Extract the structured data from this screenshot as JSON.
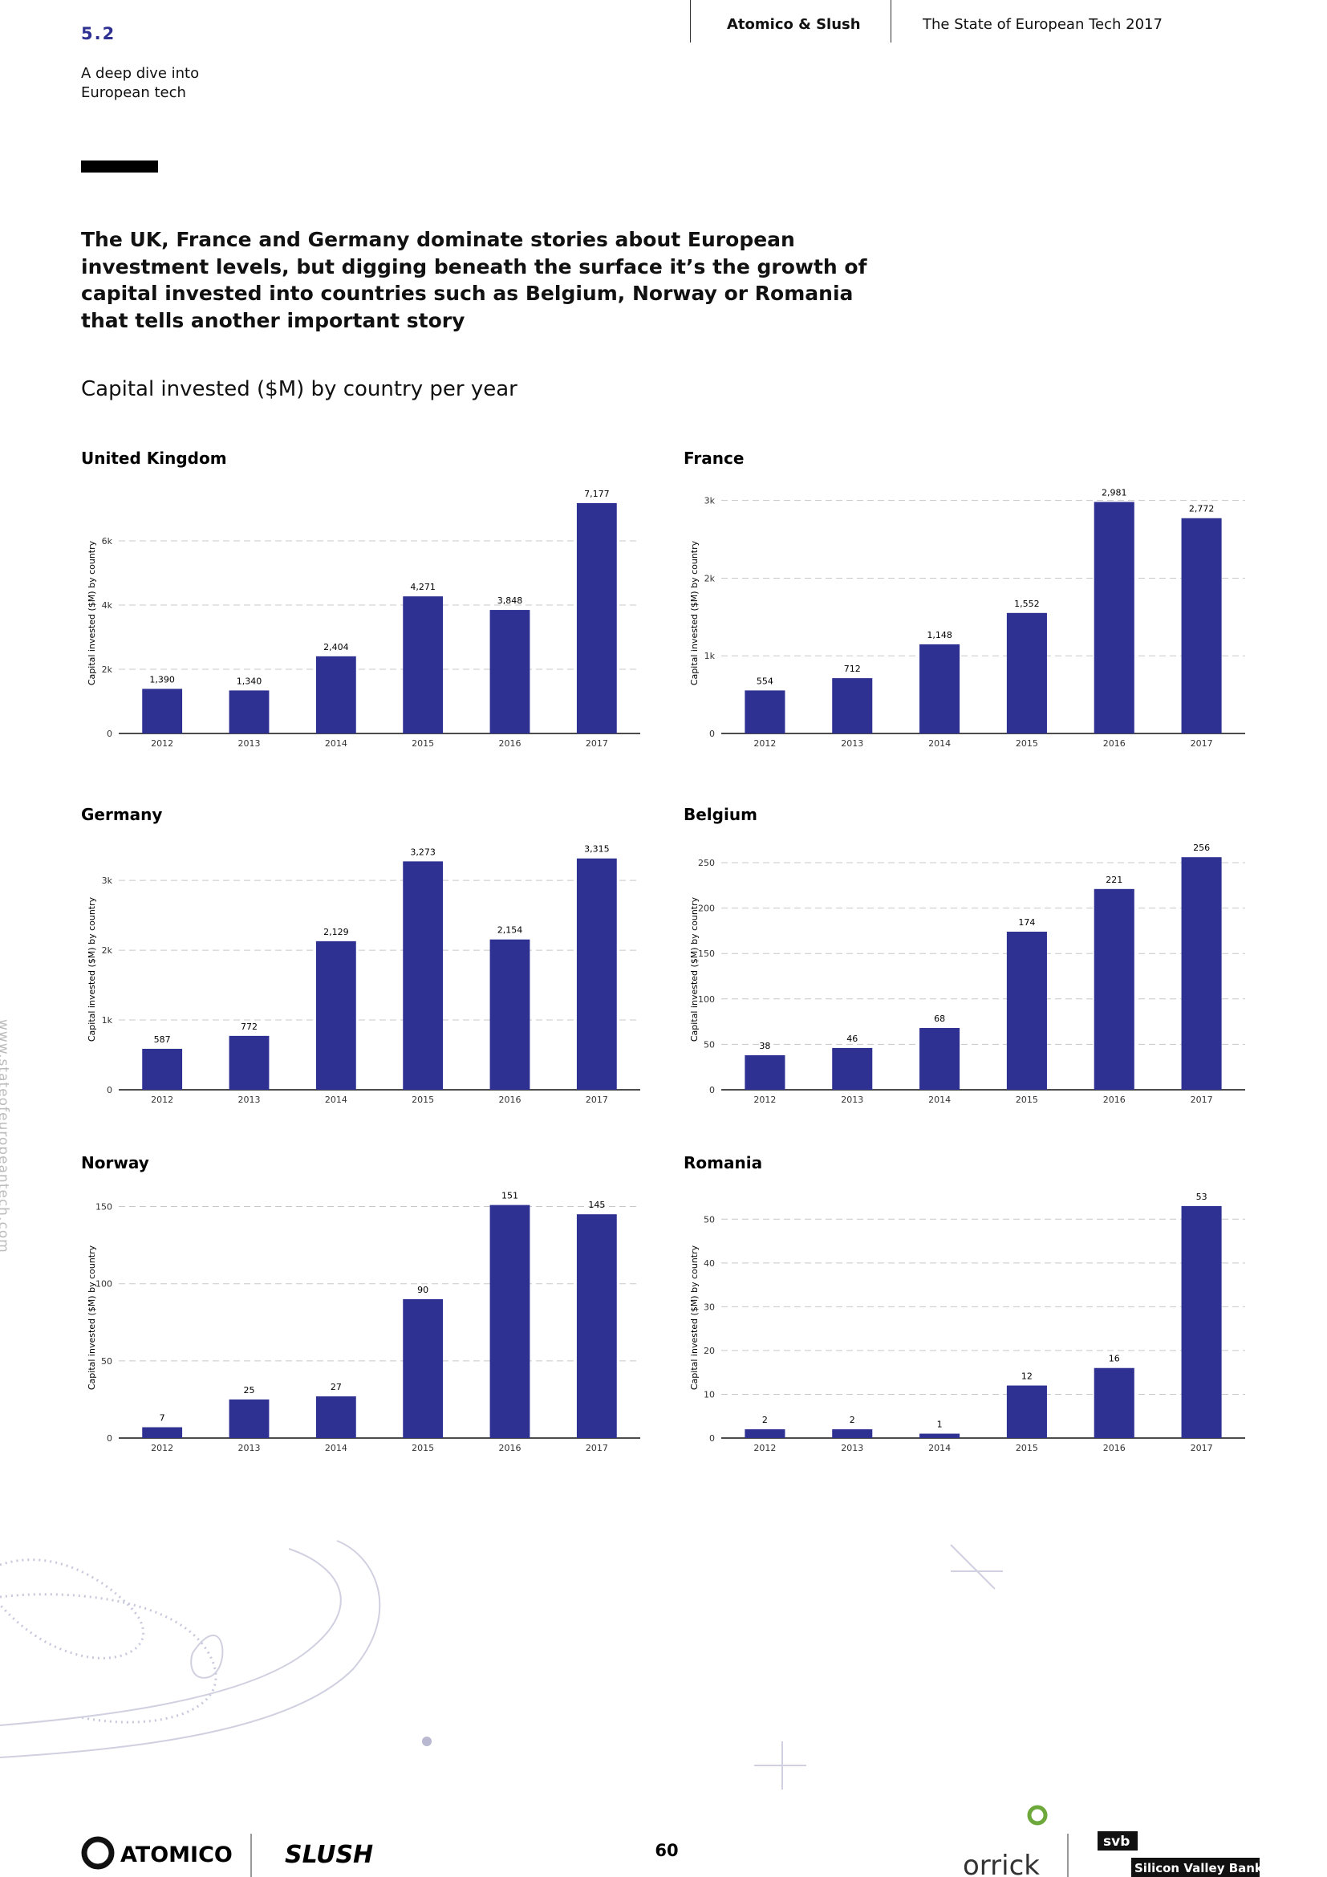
{
  "header": {
    "section": "5.2",
    "section_title": [
      "A deep dive into",
      "European tech"
    ],
    "brand": "Atomico & Slush",
    "report": "The State of European Tech 2017"
  },
  "headline": [
    "The UK, France and Germany dominate stories about European",
    "investment levels, but digging beneath the surface it’s the growth of",
    "capital invested into countries such as Belgium, Norway or Romania",
    "that tells another important story"
  ],
  "subtitle": "Capital invested ($M) by country per year",
  "side_url": "www.stateofeuropeantech.com",
  "chart_data": [
    {
      "type": "bar",
      "title": "United Kingdom",
      "y_label": "Capital invested ($M) by country",
      "categories": [
        "2012",
        "2013",
        "2014",
        "2015",
        "2016",
        "2017"
      ],
      "values": [
        1390,
        1340,
        2404,
        4271,
        3848,
        7177
      ],
      "value_labels": [
        "1,390",
        "1,340",
        "2,404",
        "4,271",
        "3,848",
        "7,177"
      ],
      "color": "#2e3192",
      "ylim": [
        0,
        7500
      ],
      "yticks": [
        0,
        {
          "value": 2000,
          "label": "2k"
        },
        {
          "value": 4000,
          "label": "4k"
        },
        {
          "value": 6000,
          "label": "6k"
        }
      ],
      "grid": true
    },
    {
      "type": "bar",
      "title": "France",
      "y_label": "Capital invested ($M) by country",
      "categories": [
        "2012",
        "2013",
        "2014",
        "2015",
        "2016",
        "2017"
      ],
      "values": [
        554,
        712,
        1148,
        1552,
        2981,
        2772
      ],
      "value_labels": [
        "554",
        "712",
        "1,148",
        "1,552",
        "2,981",
        "2,772"
      ],
      "color": "#2e3192",
      "ylim": [
        0,
        3100
      ],
      "yticks": [
        0,
        {
          "value": 1000,
          "label": "1k"
        },
        {
          "value": 2000,
          "label": "2k"
        },
        {
          "value": 3000,
          "label": "3k"
        }
      ],
      "grid": true
    },
    {
      "type": "bar",
      "title": "Germany",
      "y_label": "Capital invested ($M) by country",
      "categories": [
        "2012",
        "2013",
        "2014",
        "2015",
        "2016",
        "2017"
      ],
      "values": [
        587,
        772,
        2129,
        3273,
        2154,
        3315
      ],
      "value_labels": [
        "587",
        "772",
        "2,129",
        "3,273",
        "2,154",
        "3,315"
      ],
      "color": "#2e3192",
      "ylim": [
        0,
        3450
      ],
      "yticks": [
        0,
        {
          "value": 1000,
          "label": "1k"
        },
        {
          "value": 2000,
          "label": "2k"
        },
        {
          "value": 3000,
          "label": "3k"
        }
      ],
      "grid": true
    },
    {
      "type": "bar",
      "title": "Belgium",
      "y_label": "Capital invested ($M) by country",
      "categories": [
        "2012",
        "2013",
        "2014",
        "2015",
        "2016",
        "2017"
      ],
      "values": [
        38,
        46,
        68,
        174,
        221,
        256
      ],
      "color": "#2e3192",
      "ylim": [
        0,
        265
      ],
      "yticks": [
        0,
        50,
        100,
        150,
        200,
        250
      ],
      "grid": true
    },
    {
      "type": "bar",
      "title": "Norway",
      "y_label": "Capital invested ($M) by country",
      "categories": [
        "2012",
        "2013",
        "2014",
        "2015",
        "2016",
        "2017"
      ],
      "values": [
        7,
        25,
        27,
        90,
        151,
        145
      ],
      "color": "#2e3192",
      "ylim": [
        0,
        156
      ],
      "yticks": [
        0,
        50,
        100,
        150
      ],
      "grid": true
    },
    {
      "type": "bar",
      "title": "Romania",
      "y_label": "Capital invested ($M) by country",
      "categories": [
        "2012",
        "2013",
        "2014",
        "2015",
        "2016",
        "2017"
      ],
      "values": [
        2,
        2,
        1,
        12,
        16,
        53
      ],
      "color": "#2e3192",
      "ylim": [
        0,
        55
      ],
      "yticks": [
        0,
        10,
        20,
        30,
        40,
        50
      ],
      "grid": true
    }
  ],
  "footer": {
    "page": "60",
    "logos": [
      "ATOMICO",
      "SLUSH",
      "orrick",
      "svb",
      "Silicon Valley Bank"
    ]
  }
}
